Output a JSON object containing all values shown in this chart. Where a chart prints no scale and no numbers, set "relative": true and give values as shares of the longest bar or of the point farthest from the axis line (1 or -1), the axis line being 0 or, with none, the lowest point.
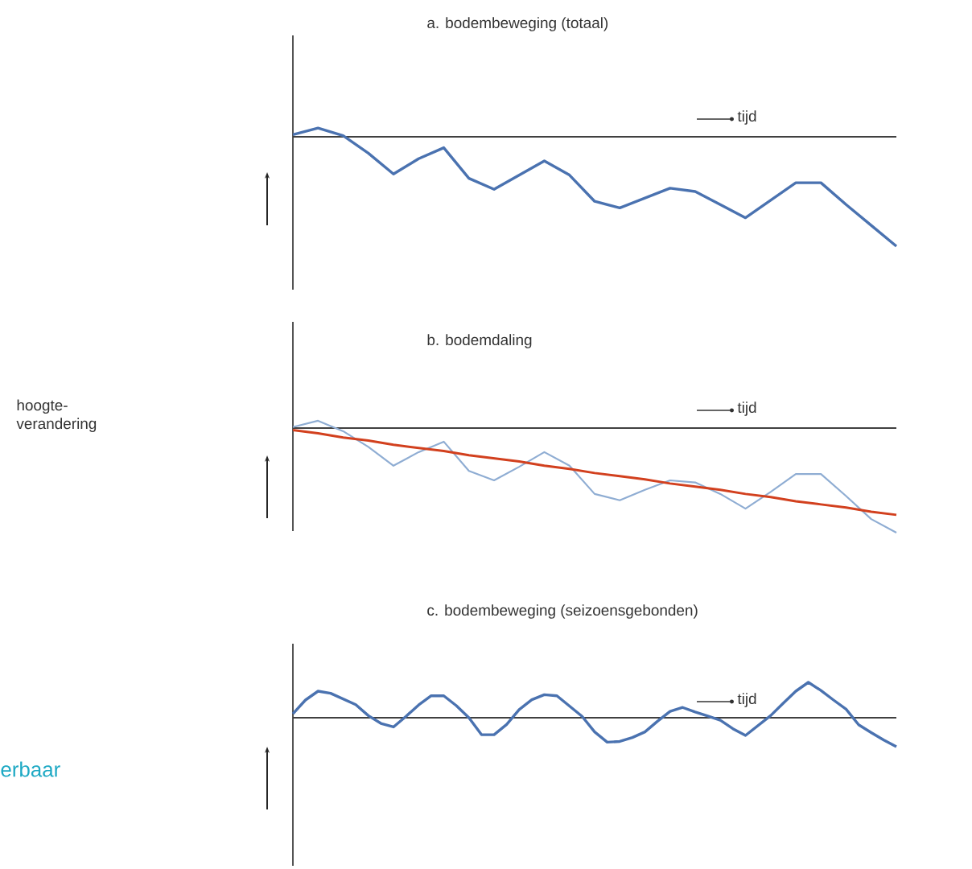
{
  "chart_data": [
    {
      "type": "line",
      "title": "a. bodembeweging (totaal)",
      "relative": true,
      "tick_labels": false,
      "line_style": "solid",
      "annotations": [
        "tijd"
      ],
      "categories": [
        null,
        null,
        null,
        null,
        null,
        null,
        null,
        null,
        null,
        null,
        null,
        null,
        null,
        null,
        null,
        null,
        null,
        null,
        null,
        null,
        null,
        null,
        null,
        null,
        null
      ],
      "series": [
        {
          "color": "#4a72b0",
          "values": [
            0.02,
            0.08,
            0.01,
            -0.15,
            -0.34,
            -0.2,
            -0.1,
            -0.38,
            -0.48,
            -0.35,
            -0.22,
            -0.35,
            -0.59,
            -0.65,
            -0.56,
            -0.47,
            -0.5,
            -0.62,
            -0.74,
            -0.58,
            -0.42,
            -0.42,
            -0.62,
            -0.81,
            -1
          ]
        }
      ]
    },
    {
      "type": "line",
      "title": "b. bodemdaling",
      "ylabel": "hoogte-verandering",
      "relative": true,
      "tick_labels": false,
      "line_style": "solid",
      "annotations": [
        "tijd"
      ],
      "categories": [
        null,
        null,
        null,
        null,
        null,
        null,
        null,
        null,
        null,
        null,
        null,
        null,
        null,
        null,
        null,
        null,
        null,
        null,
        null,
        null,
        null,
        null,
        null,
        null,
        null
      ],
      "series": [
        {
          "color": "#8fadd3",
          "values": [
            0.01,
            0.07,
            -0.03,
            -0.18,
            -0.36,
            -0.23,
            -0.13,
            -0.41,
            -0.5,
            -0.37,
            -0.23,
            -0.36,
            -0.63,
            -0.69,
            -0.59,
            -0.5,
            -0.52,
            -0.63,
            -0.77,
            -0.61,
            -0.44,
            -0.44,
            -0.65,
            -0.87,
            -1
          ]
        },
        {
          "color": "#d2401e",
          "values": [
            -0.02,
            -0.05,
            -0.09,
            -0.12,
            -0.16,
            -0.19,
            -0.22,
            -0.26,
            -0.29,
            -0.32,
            -0.36,
            -0.39,
            -0.43,
            -0.46,
            -0.49,
            -0.53,
            -0.56,
            -0.59,
            -0.63,
            -0.66,
            -0.7,
            -0.73,
            -0.76,
            -0.8,
            -0.83
          ]
        }
      ]
    },
    {
      "type": "line",
      "title": "c. bodembeweging (seizoensgebonden)",
      "relative": true,
      "tick_labels": false,
      "line_style": "solid",
      "annotations": [
        "tijd",
        "erbaar"
      ],
      "categories": [
        null,
        null,
        null,
        null,
        null,
        null,
        null,
        null,
        null,
        null,
        null,
        null,
        null,
        null,
        null,
        null,
        null,
        null,
        null,
        null,
        null,
        null,
        null,
        null,
        null,
        null,
        null,
        null,
        null,
        null,
        null,
        null,
        null,
        null,
        null,
        null,
        null,
        null,
        null,
        null,
        null,
        null,
        null,
        null,
        null,
        null,
        null,
        null,
        null
      ],
      "series": [
        {
          "color": "#4a72b0",
          "values": [
            0.11,
            0.5,
            0.75,
            0.69,
            0.53,
            0.37,
            0.06,
            -0.16,
            -0.26,
            0.04,
            0.36,
            0.62,
            0.62,
            0.34,
            0.0,
            -0.48,
            -0.48,
            -0.19,
            0.23,
            0.51,
            0.65,
            0.62,
            0.33,
            0.04,
            -0.4,
            -0.69,
            -0.67,
            -0.56,
            -0.4,
            -0.1,
            0.18,
            0.29,
            0.16,
            0.05,
            -0.07,
            -0.31,
            -0.5,
            -0.22,
            0.06,
            0.41,
            0.75,
            1,
            0.77,
            0.5,
            0.24,
            -0.2,
            -0.42,
            -0.63,
            -0.82
          ]
        }
      ]
    }
  ]
}
